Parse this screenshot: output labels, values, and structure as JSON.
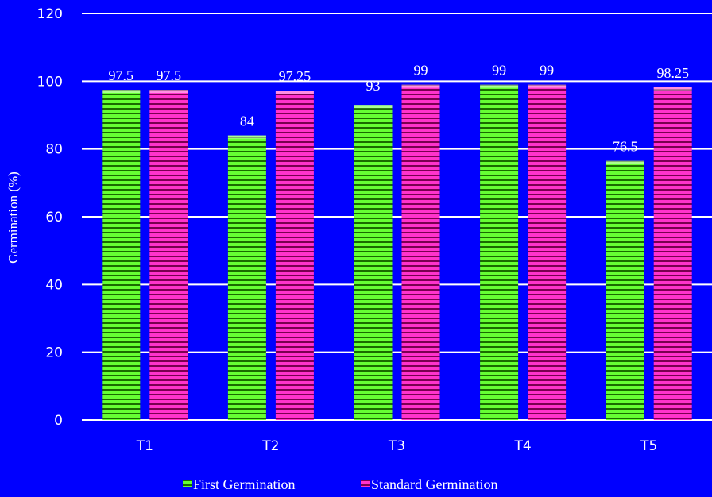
{
  "chart_data": {
    "type": "bar",
    "categories": [
      "T1",
      "T2",
      "T3",
      "T4",
      "T5"
    ],
    "series": [
      {
        "name": "First Germination",
        "values": [
          97.5,
          84,
          93,
          99,
          76.5
        ],
        "color": "#66FF33",
        "label_text": [
          "97.5",
          "84",
          "93",
          "99",
          "76.5"
        ]
      },
      {
        "name": "Standard Germination",
        "values": [
          97.5,
          97.25,
          99,
          99,
          98.25
        ],
        "color": "#FF33CC",
        "label_text": [
          "97.5",
          "97.25",
          "99",
          "99",
          "98.25"
        ]
      }
    ],
    "ylabel": "Germination (%)",
    "ylim": [
      0,
      120
    ],
    "yticks": [
      "0",
      "20",
      "40",
      "60",
      "80",
      "100",
      "120"
    ],
    "grid": true,
    "legend_position": "bottom",
    "colors": {
      "background": "#0000FF",
      "grid": "#FFFFFF",
      "text": "#FFFFFF"
    }
  }
}
